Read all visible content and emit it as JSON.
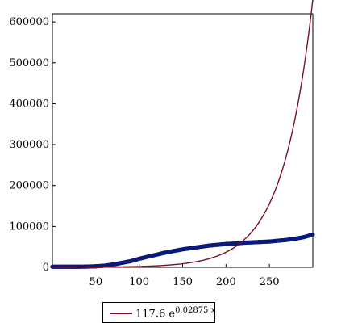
{
  "chart_data": {
    "type": "line",
    "title": "",
    "xlabel": "",
    "ylabel": "",
    "xlim": [
      0,
      300
    ],
    "ylim": [
      0,
      620000
    ],
    "x_ticks": [
      50,
      100,
      150,
      200,
      250
    ],
    "x_tick_labels": [
      "50",
      "100",
      "150",
      "200",
      "250"
    ],
    "y_ticks": [
      0,
      100000,
      200000,
      300000,
      400000,
      500000,
      600000
    ],
    "y_tick_labels": [
      "0",
      "100000",
      "200000",
      "300000",
      "400000",
      "500000",
      "600000"
    ],
    "grid": false,
    "legend_position": "bottom",
    "series": [
      {
        "role": "data",
        "color": "#0b1a7a",
        "x": [
          0,
          10,
          20,
          30,
          40,
          50,
          60,
          70,
          80,
          90,
          100,
          110,
          120,
          130,
          140,
          150,
          160,
          170,
          180,
          190,
          200,
          210,
          220,
          230,
          240,
          250,
          260,
          270,
          280,
          290,
          300
        ],
        "y": [
          1500,
          1500,
          1500,
          1500,
          1800,
          2500,
          4000,
          7000,
          11000,
          15000,
          21000,
          26000,
          31000,
          36000,
          40000,
          44000,
          47000,
          50000,
          53000,
          55000,
          57000,
          58000,
          60000,
          61000,
          62000,
          63000,
          65000,
          67000,
          70000,
          74000,
          80000
        ]
      },
      {
        "role": "fit",
        "color": "#7a1020",
        "formula": {
          "a": 117.6,
          "b": 0.02875
        },
        "legend": {
          "coef": "117.6",
          "base": "e",
          "exponent": "0.02875",
          "var": "x"
        }
      }
    ]
  }
}
